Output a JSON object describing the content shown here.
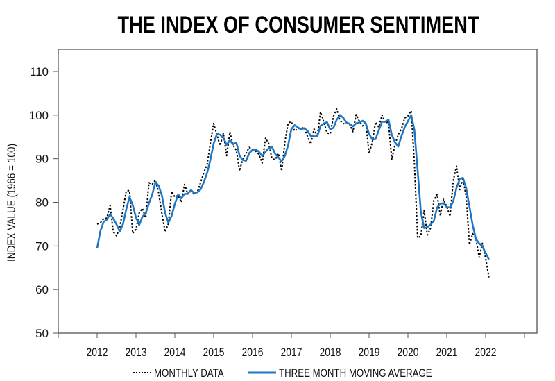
{
  "chart_data": {
    "type": "line",
    "title": "THE INDEX OF CONSUMER SENTIMENT",
    "xlabel": "",
    "ylabel": "INDEX VALUE (1966 = 100)",
    "ylim": [
      50,
      110
    ],
    "yticks": [
      "50",
      "60",
      "70",
      "80",
      "90",
      "100",
      "110"
    ],
    "xticks": [
      "2012",
      "2013",
      "2014",
      "2015",
      "2016",
      "2017",
      "2018",
      "2019",
      "2020",
      "2021",
      "2022"
    ],
    "x_start": "2012-01",
    "x_frequency": "monthly",
    "x_end": "2022-02",
    "grid": false,
    "legend": "bottom",
    "series": [
      {
        "name": "MONTHLY DATA",
        "style": "dotted",
        "color": "#000000",
        "values": [
          75.0,
          75.3,
          76.2,
          76.4,
          79.3,
          73.2,
          72.3,
          74.3,
          78.3,
          82.6,
          82.7,
          72.9,
          73.8,
          77.6,
          78.6,
          76.4,
          84.5,
          84.1,
          85.1,
          82.1,
          77.5,
          73.2,
          75.1,
          82.5,
          81.2,
          81.6,
          80.0,
          84.1,
          81.9,
          82.5,
          81.8,
          82.5,
          84.6,
          86.9,
          88.8,
          93.6,
          98.1,
          95.4,
          93.0,
          95.9,
          90.7,
          96.1,
          93.1,
          91.9,
          87.2,
          90.0,
          91.3,
          92.6,
          92.0,
          91.7,
          91.0,
          89.0,
          94.7,
          93.5,
          90.0,
          89.8,
          91.2,
          87.2,
          93.8,
          98.2,
          98.5,
          96.3,
          96.9,
          97.0,
          97.1,
          95.1,
          93.4,
          96.8,
          95.1,
          100.7,
          98.5,
          95.9,
          95.7,
          99.7,
          101.4,
          98.8,
          98.0,
          98.2,
          97.9,
          96.2,
          100.1,
          98.6,
          97.5,
          98.3,
          91.2,
          93.8,
          98.4,
          97.2,
          100.0,
          98.2,
          98.4,
          89.8,
          93.2,
          95.5,
          96.8,
          99.3,
          99.8,
          101.0,
          89.1,
          71.8,
          72.3,
          78.1,
          72.5,
          74.1,
          80.4,
          81.8,
          76.9,
          80.7,
          79.0,
          76.8,
          84.9,
          88.3,
          82.9,
          85.5,
          81.2,
          70.3,
          72.8,
          71.7,
          67.4,
          70.6,
          67.2,
          62.8
        ]
      },
      {
        "name": "THREE MONTH MOVING AVERAGE",
        "style": "solid",
        "color": "#1f77c4",
        "values": [
          69.5,
          73.4,
          75.5,
          76.0,
          77.3,
          76.3,
          74.9,
          73.3,
          75.0,
          78.4,
          81.2,
          79.4,
          76.5,
          74.8,
          76.7,
          77.5,
          79.8,
          81.7,
          84.6,
          83.8,
          81.6,
          77.6,
          75.3,
          76.9,
          79.6,
          81.8,
          80.9,
          81.9,
          82.0,
          82.8,
          82.1,
          82.3,
          83.0,
          84.7,
          86.8,
          89.8,
          93.5,
          95.7,
          95.5,
          94.8,
          93.2,
          94.2,
          93.3,
          93.7,
          90.7,
          89.7,
          89.5,
          91.3,
          92.0,
          92.1,
          91.6,
          90.6,
          91.6,
          92.4,
          92.7,
          91.1,
          90.3,
          89.4,
          90.7,
          93.1,
          96.8,
          97.7,
          97.2,
          96.7,
          97.0,
          96.4,
          95.2,
          95.1,
          95.1,
          97.5,
          98.1,
          98.4,
          96.7,
          97.1,
          98.9,
          100.0,
          99.4,
          98.3,
          98.0,
          97.4,
          98.1,
          98.3,
          98.7,
          98.1,
          95.7,
          94.4,
          94.5,
          96.5,
          98.5,
          98.5,
          98.9,
          95.5,
          93.8,
          92.8,
          95.2,
          97.2,
          98.6,
          100.0,
          96.6,
          87.3,
          77.7,
          74.1,
          74.3,
          74.9,
          75.7,
          78.8,
          79.7,
          79.8,
          78.9,
          78.8,
          80.2,
          83.3,
          85.4,
          85.6,
          83.2,
          79.0,
          74.8,
          71.6,
          70.6,
          69.9,
          68.4,
          66.9
        ]
      }
    ]
  }
}
